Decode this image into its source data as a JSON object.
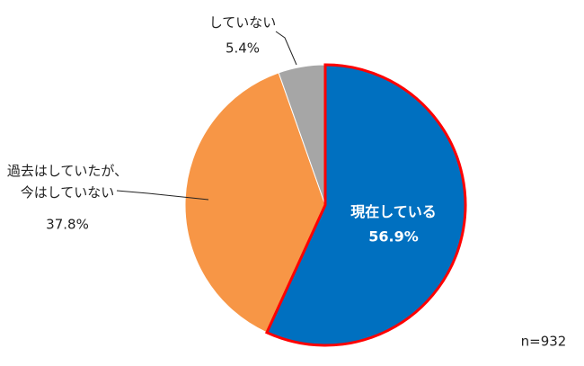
{
  "chart_data": {
    "type": "pie",
    "categories": [
      "現在している",
      "過去はしていたが、\n今はしていない",
      "していない"
    ],
    "values": [
      56.9,
      37.8,
      5.4
    ],
    "value_labels": [
      "56.9%",
      "37.8%",
      "5.4%"
    ],
    "colors": [
      "#0070c0",
      "#f79646",
      "#a6a6a6"
    ],
    "highlight": 0,
    "highlight_color": "#ff0000",
    "annotation": "n=932"
  }
}
